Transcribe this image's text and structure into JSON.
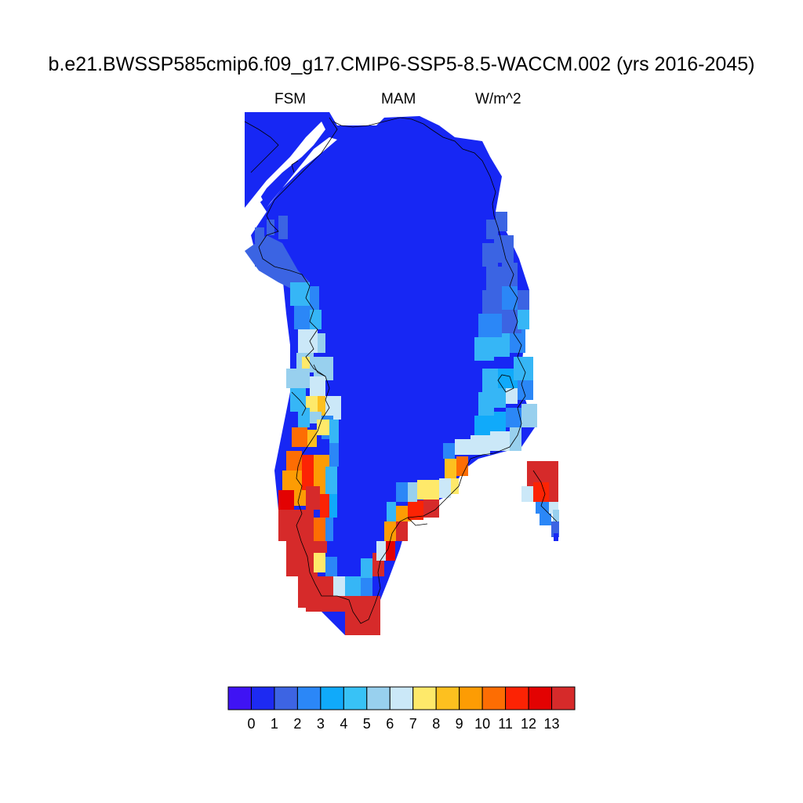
{
  "title": "b.e21.BWSSP585cmip6.f09_g17.CMIP6-SSP5-8.5-WACCM.002 (yrs 2016-2045)",
  "subtitle": {
    "left": "FSM",
    "center": "MAM",
    "right": "W/m^2"
  },
  "colorbar": {
    "colors": [
      "#3f13f4",
      "#1d2af2",
      "#3d64e3",
      "#2b87f7",
      "#10aafa",
      "#38c2f6",
      "#98d0ee",
      "#cbe8f8",
      "#fee96a",
      "#fdc01f",
      "#fd9c04",
      "#fd6d03",
      "#fc2304",
      "#e30202",
      "#d62a2a"
    ],
    "labels": [
      "0",
      "1",
      "2",
      "3",
      "4",
      "5",
      "6",
      "7",
      "8",
      "9",
      "10",
      "11",
      "12",
      "13"
    ]
  },
  "map": {
    "region": "Greenland",
    "colors": {
      "blue": "#1727f4",
      "mid": "#3b64e3",
      "bright": "#2b87f7",
      "sky": "#36b6f6",
      "cyan": "#10aafa",
      "lightblue": "#98d0ee",
      "pale": "#cbe8f8",
      "yellow": "#fee96a",
      "gold": "#fdc01f",
      "orange": "#fd9c04",
      "darkorange": "#fd6d03",
      "red": "#fc2304",
      "darkred": "#e30202",
      "brick": "#d62a2a"
    }
  }
}
